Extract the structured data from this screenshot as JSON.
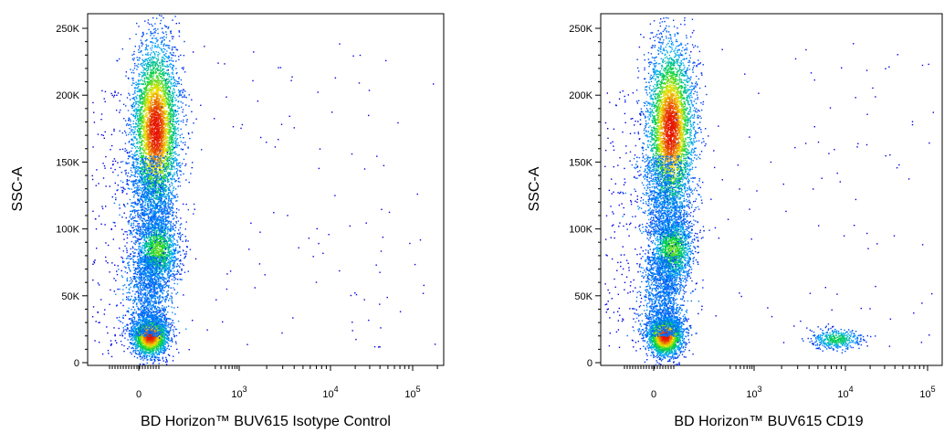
{
  "chart_data": [
    {
      "type": "scatter",
      "xlabel": "BD Horizon™ BUV615 Isotype Control",
      "ylabel": "SSC-A",
      "x_scale": "biexponential",
      "y_ticks": [
        "0",
        "50K",
        "100K",
        "150K",
        "200K",
        "250K"
      ],
      "x_ticks": [
        {
          "base": "0",
          "exp": ""
        },
        {
          "base": "10",
          "exp": "3"
        },
        {
          "base": "10",
          "exp": "4"
        },
        {
          "base": "10",
          "exp": "5"
        }
      ],
      "ylim": [
        0,
        262144
      ],
      "color_scale": "density (blue-green-yellow-red)",
      "populations": [
        {
          "x_center": 0,
          "y_center": 20000,
          "density": "high"
        },
        {
          "x_center": 0,
          "y_center": 85000,
          "density": "medium"
        },
        {
          "x_center": 0,
          "y_center": 175000,
          "density": "high"
        }
      ]
    },
    {
      "type": "scatter",
      "xlabel": "BD Horizon™ BUV615 CD19",
      "ylabel": "SSC-A",
      "x_scale": "biexponential",
      "y_ticks": [
        "0",
        "50K",
        "100K",
        "150K",
        "200K",
        "250K"
      ],
      "x_ticks": [
        {
          "base": "0",
          "exp": ""
        },
        {
          "base": "10",
          "exp": "3"
        },
        {
          "base": "10",
          "exp": "4"
        },
        {
          "base": "10",
          "exp": "5"
        }
      ],
      "ylim": [
        0,
        262144
      ],
      "color_scale": "density (blue-green-yellow-red)",
      "populations": [
        {
          "x_center": 0,
          "y_center": 20000,
          "density": "high"
        },
        {
          "x_center": 0,
          "y_center": 85000,
          "density": "medium"
        },
        {
          "x_center": 0,
          "y_center": 175000,
          "density": "high"
        },
        {
          "x_center": 10000,
          "y_center": 18000,
          "density": "medium"
        }
      ]
    }
  ]
}
